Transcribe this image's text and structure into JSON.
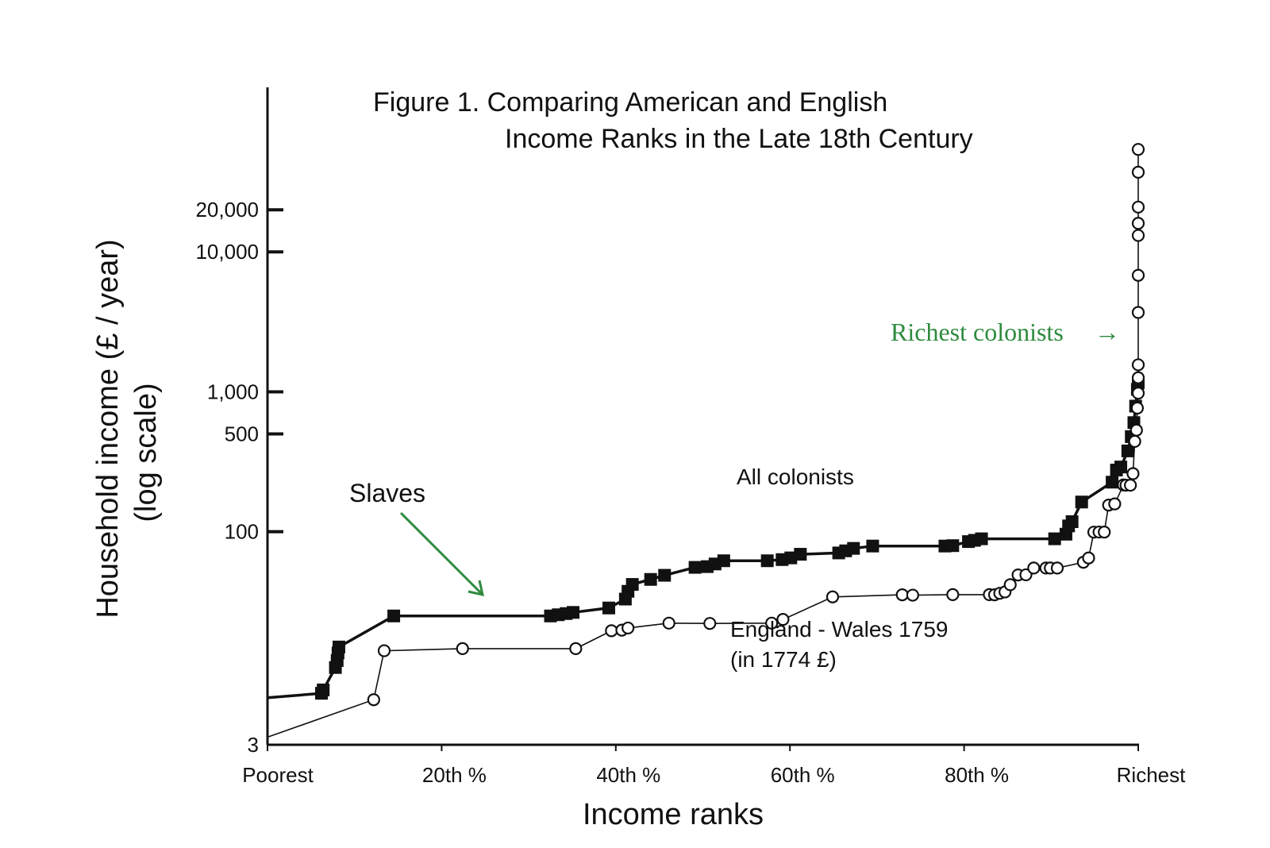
{
  "chart_data": {
    "type": "line",
    "title_line1": "Figure 1. Comparing American and English",
    "title_line2": "Income Ranks in the Late 18th Century",
    "xlabel": "Income ranks",
    "ylabel_line1": "Household income (£ / year)",
    "ylabel_line2": "(log scale)",
    "x_ticks": [
      {
        "value": 0,
        "label": "Poorest"
      },
      {
        "value": 20,
        "label": "20th %"
      },
      {
        "value": 40,
        "label": "40th %"
      },
      {
        "value": 60,
        "label": "60th %"
      },
      {
        "value": 80,
        "label": "80th %"
      },
      {
        "value": 100,
        "label": "Richest"
      }
    ],
    "y_ticks": [
      {
        "value": 3,
        "label": "3"
      },
      {
        "value": 100,
        "label": "100"
      },
      {
        "value": 500,
        "label": "500"
      },
      {
        "value": 1000,
        "label": "1,000"
      },
      {
        "value": 10000,
        "label": "10,000"
      },
      {
        "value": 20000,
        "label": "20,000"
      }
    ],
    "xlim": [
      0,
      100
    ],
    "y_scale": "log",
    "y_axis_top_value": 150000,
    "grid": false,
    "annotations": {
      "all_colonists": "All colonists",
      "england_line1": "England - Wales 1759",
      "england_line2": "(in 1774 £)",
      "slaves": "Slaves",
      "richest": "Richest colonists",
      "richest_arrow": "→",
      "green_color": "#2e8b3e"
    },
    "series": [
      {
        "name": "All colonists",
        "marker": "filled-square",
        "color": "#111111",
        "x": [
          0,
          6.2,
          6.4,
          7.8,
          8.0,
          8.1,
          8.2,
          14.5,
          32.5,
          33.4,
          34.3,
          35.1,
          39.2,
          41.1,
          41.4,
          41.9,
          44.0,
          45.6,
          49.1,
          50.5,
          51.4,
          52.4,
          57.4,
          59.1,
          60.1,
          61.2,
          65.6,
          66.4,
          67.3,
          69.5,
          77.8,
          78.7,
          80.5,
          81.2,
          82.0,
          90.4,
          91.7,
          92.0,
          92.4,
          93.5,
          97.0,
          97.5,
          98.0,
          98.8,
          99.2,
          99.5,
          99.7,
          99.9,
          100
        ],
        "y": [
          6.5,
          7,
          7.4,
          10.7,
          12,
          13.6,
          15,
          25,
          25,
          25.5,
          26,
          26.5,
          28.5,
          33,
          37.5,
          42,
          45.6,
          48.8,
          55.6,
          56.3,
          58.8,
          62,
          62,
          63.2,
          65,
          69,
          70.5,
          73,
          76,
          79,
          79,
          79.5,
          85,
          86.8,
          89,
          89,
          96,
          110,
          118,
          163,
          226,
          276,
          290,
          378,
          478,
          602,
          790,
          1041,
          1160
        ]
      },
      {
        "name": "England - Wales 1759",
        "marker": "open-circle",
        "color": "#111111",
        "x": [
          0,
          12.2,
          13.4,
          22.4,
          35.4,
          39.5,
          40.7,
          41.4,
          46.1,
          50.8,
          57.9,
          59.2,
          64.9,
          72.9,
          74.1,
          78.7,
          82.9,
          83.5,
          84.1,
          84.7,
          85.3,
          86.2,
          87.1,
          88.0,
          89.4,
          89.9,
          90.7,
          93.7,
          94.3,
          94.9,
          95.5,
          96.1,
          96.6,
          97.3,
          98.3,
          98.6,
          99.1,
          99.4,
          99.6,
          99.8,
          99.9,
          100,
          100,
          100,
          100,
          100,
          100,
          100,
          100,
          100,
          100
        ],
        "y": [
          3.4,
          6.3,
          14.1,
          14.6,
          14.6,
          19.6,
          19.8,
          20.5,
          22.2,
          22.1,
          22.2,
          23.6,
          34.2,
          35.4,
          35.2,
          35.5,
          35.5,
          35.4,
          36.3,
          37.1,
          41.8,
          49.1,
          49.2,
          55.0,
          55.0,
          55.0,
          55.0,
          60.5,
          64.9,
          99.3,
          99.5,
          99.4,
          155,
          158,
          216,
          215,
          215,
          260,
          442,
          532,
          765,
          978,
          1260,
          1560,
          3690,
          6800,
          13100,
          16000,
          20900,
          37100,
          54000
        ]
      }
    ]
  }
}
